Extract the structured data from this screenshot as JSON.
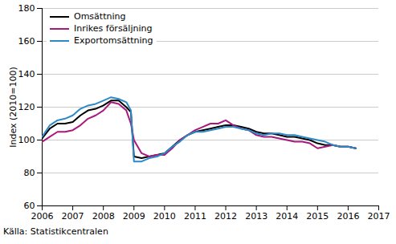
{
  "chart_data": {
    "type": "line",
    "y_label": "Index (2010=100)",
    "caption": "Källa: Statistikcentralen",
    "x": [
      2006,
      2006.25,
      2006.5,
      2006.75,
      2007,
      2007.25,
      2007.5,
      2007.75,
      2008,
      2008.25,
      2008.5,
      2008.75,
      2008.9,
      2009,
      2009.25,
      2009.5,
      2009.75,
      2010,
      2010.25,
      2010.5,
      2010.75,
      2011,
      2011.25,
      2011.5,
      2011.75,
      2012,
      2012.25,
      2012.5,
      2012.75,
      2013,
      2013.25,
      2013.5,
      2013.75,
      2014,
      2014.25,
      2014.5,
      2014.75,
      2015,
      2015.25,
      2015.5,
      2015.75,
      2016,
      2016.25
    ],
    "series": [
      {
        "name": "Omsättning",
        "color": "#000000",
        "values": [
          101,
          107,
          110,
          110,
          111,
          115,
          118,
          119,
          121,
          124,
          124,
          120,
          117,
          90,
          89,
          90,
          91,
          92,
          96,
          100,
          103,
          105,
          106,
          107,
          108,
          109,
          109,
          108,
          107,
          105,
          104,
          104,
          103,
          102,
          102,
          101,
          100,
          98,
          97,
          97,
          96,
          96,
          95
        ]
      },
      {
        "name": "Inrikes försäljning",
        "color": "#a8197d",
        "values": [
          99,
          102,
          105,
          105,
          106,
          109,
          113,
          115,
          118,
          123,
          122,
          118,
          110,
          100,
          92,
          90,
          91,
          91,
          95,
          100,
          103,
          106,
          108,
          110,
          110,
          112,
          109,
          107,
          106,
          103,
          102,
          102,
          101,
          100,
          99,
          99,
          98,
          95,
          96,
          97,
          96,
          96,
          95
        ]
      },
      {
        "name": "Exportomsättning",
        "color": "#2a8bc6",
        "values": [
          102,
          109,
          112,
          113,
          115,
          119,
          121,
          122,
          124,
          126,
          125,
          123,
          118,
          87,
          87,
          89,
          90,
          92,
          96,
          99,
          103,
          105,
          105,
          106,
          107,
          108,
          108,
          107,
          106,
          104,
          103,
          104,
          104,
          103,
          103,
          102,
          101,
          100,
          99,
          97,
          96,
          96,
          95
        ]
      }
    ],
    "xlim": [
      2006,
      2017
    ],
    "xticks": [
      2006,
      2007,
      2008,
      2009,
      2010,
      2011,
      2012,
      2013,
      2014,
      2015,
      2016,
      2017
    ],
    "ylim": [
      60,
      180
    ],
    "yticks": [
      60,
      80,
      100,
      120,
      140,
      160,
      180
    ],
    "grid": true,
    "legend": "top-left"
  }
}
